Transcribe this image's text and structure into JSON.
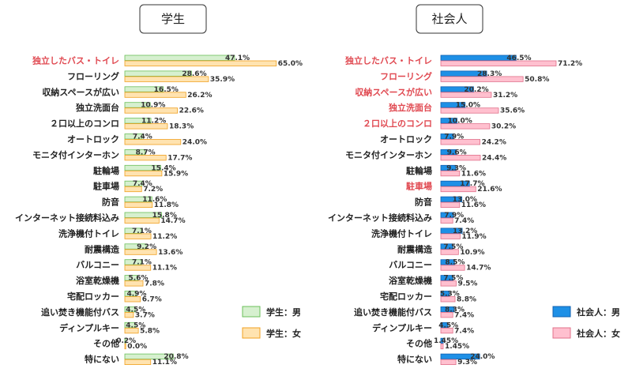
{
  "chart_data": [
    {
      "type": "bar",
      "orientation": "horizontal",
      "title": "学生",
      "categories": [
        "独立したバス・トイレ",
        "フローリング",
        "収納スペースが広い",
        "独立洗面台",
        "２口以上のコンロ",
        "オートロック",
        "モニタ付インターホン",
        "駐輪場",
        "駐車場",
        "防音",
        "インターネット接続料込み",
        "洗浄機付トイレ",
        "耐震構造",
        "バルコニー",
        "浴室乾燥機",
        "宅配ロッカー",
        "追い焚き機能付バス",
        "ディンプルキー",
        "その他",
        "特にない"
      ],
      "highlighted_categories": [
        "独立したバス・トイレ"
      ],
      "series": [
        {
          "name": "学生：男",
          "color": "#d6f0cf",
          "stroke": "#6bbf5a",
          "values": [
            47.1,
            28.6,
            16.5,
            10.9,
            11.2,
            7.4,
            8.7,
            15.4,
            7.4,
            11.6,
            15.8,
            7.1,
            9.2,
            7.1,
            5.6,
            4.9,
            4.5,
            4.5,
            0.2,
            20.8
          ],
          "labels": [
            "47.1%",
            "28.6%",
            "16.5%",
            "10.9%",
            "11.2%",
            "7.4%",
            "8.7%",
            "15.4%",
            "7.4%",
            "11.6%",
            "15.8%",
            "7.1%",
            "9.2%",
            "7.1%",
            "5.6%",
            "4.9%",
            "4.5%",
            "4.5%",
            "0.2%",
            "20.8%"
          ]
        },
        {
          "name": "学生：女",
          "color": "#ffe3b0",
          "stroke": "#f0a020",
          "values": [
            65.0,
            35.9,
            26.2,
            22.6,
            18.3,
            24.0,
            17.7,
            15.9,
            7.2,
            11.8,
            14.7,
            11.2,
            13.6,
            11.1,
            7.8,
            6.7,
            3.7,
            5.8,
            0.0,
            11.1
          ],
          "labels": [
            "65.0%",
            "35.9%",
            "26.2%",
            "22.6%",
            "18.3%",
            "24.0%",
            "17.7%",
            "15.9%",
            "7.2%",
            "11.8%",
            "14.7%",
            "11.2%",
            "13.6%",
            "11.1%",
            "7.8%",
            "6.7%",
            "3.7%",
            "5.8%",
            "0.0%",
            "11.1%"
          ]
        }
      ],
      "legend_position": "bottom-right"
    },
    {
      "type": "bar",
      "orientation": "horizontal",
      "title": "社会人",
      "categories": [
        "独立したバス・トイレ",
        "フローリング",
        "収納スペースが広い",
        "独立洗面台",
        "２口以上のコンロ",
        "オートロック",
        "モニタ付インターホン",
        "駐輪場",
        "駐車場",
        "防音",
        "インターネット接続料込み",
        "洗浄機付トイレ",
        "耐震構造",
        "バルコニー",
        "浴室乾燥機",
        "宅配ロッカー",
        "追い焚き機能付バス",
        "ディンプルキー",
        "その他",
        "特にない"
      ],
      "highlighted_categories": [
        "独立したバス・トイレ",
        "フローリング",
        "収納スペースが広い",
        "独立洗面台",
        "２口以上のコンロ",
        "駐車場"
      ],
      "series": [
        {
          "name": "社会人：男",
          "color": "#1e90e6",
          "stroke": "#1060b0",
          "values": [
            46.5,
            28.3,
            20.2,
            15.0,
            10.0,
            7.9,
            9.6,
            9.3,
            17.7,
            13.0,
            7.9,
            13.2,
            7.5,
            8.5,
            7.5,
            5.3,
            8.3,
            4.5,
            1.45,
            24.0
          ],
          "labels": [
            "46.5%",
            "28.3%",
            "20.2%",
            "15.0%",
            "10.0%",
            "7.9%",
            "9.6%",
            "9.3%",
            "17.7%",
            "13.0%",
            "7.9%",
            "13.2%",
            "7.5%",
            "8.5%",
            "7.5%",
            "5.3%",
            "8.3%",
            "4.5%",
            "1.45%",
            "24.0%"
          ]
        },
        {
          "name": "社会人：女",
          "color": "#ffc0cf",
          "stroke": "#e0708a",
          "values": [
            71.2,
            50.8,
            31.2,
            35.6,
            30.2,
            24.2,
            24.4,
            11.6,
            21.6,
            11.6,
            7.4,
            11.9,
            10.9,
            14.7,
            9.5,
            8.8,
            7.4,
            7.4,
            1.45,
            9.3
          ],
          "labels": [
            "71.2%",
            "50.8%",
            "31.2%",
            "35.6%",
            "30.2%",
            "24.2%",
            "24.4%",
            "11.6%",
            "21.6%",
            "11.6%",
            "7.4%",
            "11.9%",
            "10.9%",
            "14.7%",
            "9.5%",
            "8.8%",
            "7.4%",
            "7.4%",
            "1.45%",
            "9.3%"
          ]
        }
      ],
      "legend_position": "bottom-right"
    }
  ]
}
